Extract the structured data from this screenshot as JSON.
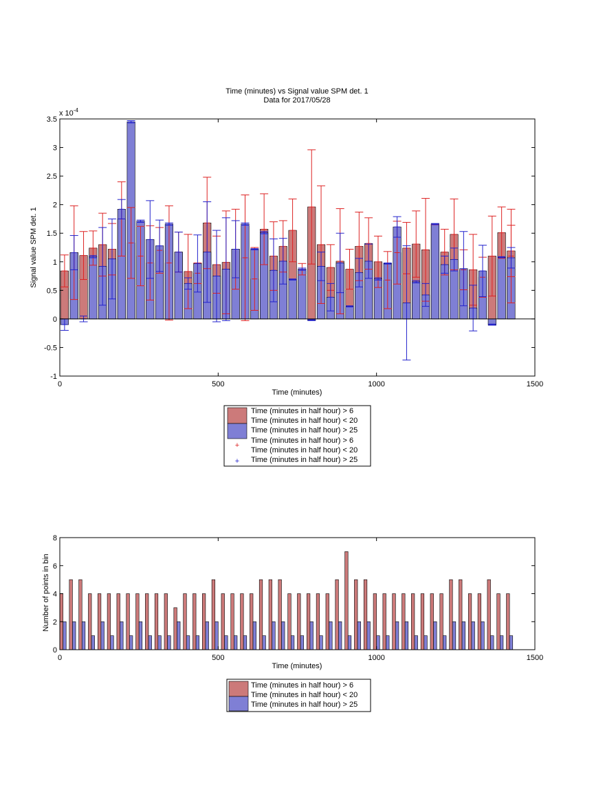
{
  "chart_data": [
    {
      "type": "bar",
      "title": "Time (minutes) vs Signal value SPM det. 1",
      "subtitle": "Data for 2017/05/28",
      "xlabel": "Time (minutes)",
      "ylabel": "Signal value SPM det. 1",
      "exponent_label": "x 10",
      "exponent_power": "-4",
      "xlim": [
        0,
        1500
      ],
      "ylim": [
        -1,
        3.5
      ],
      "y_scale": 0.0001,
      "xticks": [
        0,
        500,
        1000,
        1500
      ],
      "yticks": [
        -1,
        -0.5,
        0,
        0.5,
        1,
        1.5,
        2,
        2.5,
        3,
        3.5
      ],
      "grid": false,
      "legend_position": "below",
      "legend": [
        "Time (minutes in half hour) > 6",
        "Time (minutes in half hour) < 20",
        "Time (minutes in half hour) > 25",
        "Time (minutes in half hour) > 6",
        "Time (minutes in half hour) < 20",
        "Time (minutes in half hour) > 25"
      ],
      "colors": {
        "red_series": "#cc7a7a",
        "blue_series": "#7f7fd5",
        "red_err": "#dd2222",
        "blue_err": "#2222cc"
      },
      "series": [
        {
          "x": [
            15,
            75,
            135,
            195,
            255,
            315,
            375,
            435,
            495,
            555,
            615,
            675,
            735,
            795,
            855,
            915,
            975,
            1035,
            1095,
            1155,
            1215,
            1275,
            1335,
            1395,
            1425,
            45,
            105,
            165,
            225,
            285,
            345,
            405,
            465,
            525,
            585,
            645,
            705,
            765,
            825,
            885,
            945,
            1005,
            1065,
            1125,
            1185,
            1245,
            1305,
            1365,
            1425
          ],
          "values": [
            0.84,
            1.11,
            1.3,
            1.75,
            1.1,
            1.2,
            1.17,
            0.8,
            0.95,
            1.22,
            0.7,
            1.1,
            1.55,
            1.96,
            0.9,
            0.87,
            1.32,
            0.68,
            1.24,
            1.21,
            1.17,
            0.86,
            0.73,
            1.51,
            1.1,
            1.16,
            1.24,
            1.22,
            1.33,
            0.98,
            0.98,
            0.83,
            1.68,
            0.99,
            1.07,
            1.57,
            1.27,
            0.87,
            1.3,
            1.01,
            1.27,
            1.0,
            1.16,
            1.31,
            1.65,
            1.48,
            0.86,
            1.1,
            1.19
          ],
          "error": [
            0.28,
            0.42,
            0.55,
            0.65,
            0.52,
            0.4,
            0.35,
            0.18,
            0.5,
            0.7,
            0.55,
            0.6,
            0.55,
            1.0,
            0.4,
            0.35,
            0.45,
            0.5,
            0.45,
            0.9,
            0.4,
            0.35,
            0.35,
            0.45,
            0.82,
            0.82,
            0.3,
            0.45,
            0.62,
            0.65,
            1.0,
            0.65,
            0.8,
            0.9,
            1.1,
            0.62,
            0.45,
            0.1,
            1.03,
            0.92,
            0.6,
            0.45,
            0.55,
            0.58,
            0.0,
            0.62,
            0.62,
            0.7,
            0.45
          ]
        },
        {
          "x": [
            15,
            75,
            135,
            195,
            255,
            315,
            375,
            435,
            495,
            555,
            615,
            675,
            735,
            795,
            855,
            915,
            975,
            1035,
            1095,
            1155,
            1215,
            1275,
            1335,
            1395,
            45,
            105,
            165,
            225,
            285,
            345,
            405,
            465,
            525,
            585,
            645,
            705,
            765,
            825,
            885,
            945,
            1005,
            1065,
            1125,
            1185,
            1245,
            1305,
            1365,
            1425
          ],
          "values": [
            -0.1,
            0.0,
            0.92,
            1.92,
            1.71,
            1.28,
            1.17,
            0.97,
            0.75,
            1.22,
            1.22,
            0.85,
            0.69,
            -0.02,
            0.38,
            0.22,
            1.01,
            0.97,
            0.28,
            0.42,
            0.95,
            0.88,
            0.84,
            1.08,
            1.16,
            1.09,
            1.05,
            3.45,
            1.39,
            1.66,
            0.62,
            1.17,
            0.87,
            1.66,
            1.51,
            1.01,
            0.87,
            0.92,
            0.98,
            0.81,
            0.7,
            1.61,
            0.65,
            1.66,
            1.04,
            0.19,
            -0.1,
            1.07
          ],
          "error": [
            0.1,
            0.05,
            0.68,
            0.17,
            0.02,
            0.45,
            0.35,
            0.5,
            0.8,
            0.5,
            0.01,
            0.55,
            0.01,
            0.01,
            0.24,
            0.01,
            0.3,
            0.01,
            1.0,
            0.2,
            0.15,
            0.65,
            0.45,
            0.01,
            0.3,
            0.02,
            0.7,
            0.02,
            0.68,
            0.02,
            0.1,
            0.88,
            0.9,
            0.02,
            0.02,
            0.4,
            0.02,
            0.25,
            0.52,
            0.25,
            0.02,
            0.18,
            0.02,
            0.01,
            0.2,
            0.4,
            0.01,
            0.18
          ]
        }
      ]
    },
    {
      "type": "bar",
      "xlabel": "Time (minutes)",
      "ylabel": "Number of points in bin",
      "xlim": [
        0,
        1500
      ],
      "ylim": [
        0,
        8
      ],
      "xticks": [
        0,
        500,
        1000,
        1500
      ],
      "yticks": [
        0,
        2,
        4,
        6,
        8
      ],
      "grid": false,
      "legend_position": "below",
      "legend": [
        "Time (minutes in half hour) > 6",
        "Time (minutes in half hour) < 20",
        "Time (minutes in half hour) > 25"
      ],
      "series": [
        {
          "x": [
            5,
            35,
            65,
            95,
            125,
            155,
            185,
            215,
            245,
            275,
            305,
            335,
            365,
            395,
            425,
            455,
            485,
            515,
            545,
            575,
            605,
            635,
            665,
            695,
            725,
            755,
            785,
            815,
            845,
            875,
            905,
            935,
            965,
            995,
            1025,
            1055,
            1085,
            1115,
            1145,
            1175,
            1205,
            1235,
            1265,
            1295,
            1325,
            1355,
            1385,
            1415
          ],
          "values": [
            4,
            5,
            5,
            4,
            4,
            4,
            4,
            4,
            4,
            4,
            4,
            4,
            3,
            4,
            4,
            4,
            5,
            4,
            4,
            4,
            4,
            5,
            5,
            5,
            4,
            4,
            4,
            4,
            4,
            5,
            7,
            5,
            5,
            4,
            4,
            4,
            4,
            4,
            4,
            4,
            4,
            5,
            5,
            4,
            4,
            5,
            4,
            4
          ]
        },
        {
          "x": [
            15,
            45,
            75,
            105,
            135,
            165,
            195,
            225,
            255,
            285,
            315,
            345,
            375,
            405,
            435,
            465,
            495,
            525,
            555,
            585,
            615,
            645,
            675,
            705,
            735,
            765,
            795,
            825,
            855,
            885,
            915,
            945,
            975,
            1005,
            1035,
            1065,
            1095,
            1125,
            1155,
            1185,
            1215,
            1245,
            1275,
            1305,
            1335,
            1365,
            1395,
            1425
          ],
          "values": [
            2,
            2,
            2,
            1,
            2,
            1,
            2,
            1,
            2,
            1,
            1,
            1,
            2,
            1,
            1,
            2,
            2,
            1,
            1,
            1,
            2,
            1,
            2,
            2,
            1,
            1,
            2,
            1,
            2,
            2,
            1,
            2,
            2,
            1,
            1,
            2,
            2,
            1,
            1,
            2,
            1,
            2,
            2,
            2,
            2,
            1,
            1,
            1
          ]
        }
      ]
    }
  ]
}
